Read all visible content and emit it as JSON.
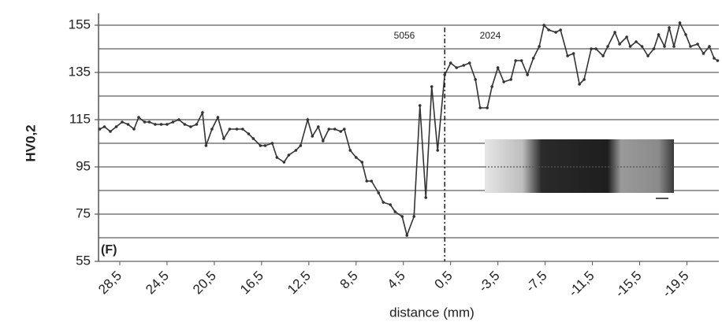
{
  "chart_data": {
    "type": "line",
    "x_label": "distance (mm)",
    "y_label": "HV0,2",
    "annotations": [
      "5056",
      "2024",
      "(F)"
    ],
    "divider_x": 1.0,
    "series": [
      {
        "color": "#333333",
        "x": [
          30.2,
          29.8,
          29.3,
          28.8,
          28.3,
          27.8,
          27.3,
          26.9,
          26.4,
          26.0,
          25.5,
          25.0,
          24.5,
          24.0,
          23.5,
          23.0,
          22.5,
          22.0,
          21.5,
          21.2,
          20.7,
          20.2,
          19.7,
          19.2,
          18.6,
          18.1,
          17.6,
          17.2,
          16.6,
          16.2,
          15.6,
          15.2,
          14.6,
          14.2,
          13.6,
          13.2,
          12.6,
          12.2,
          11.7,
          11.3,
          10.8,
          10.3,
          9.8,
          9.5,
          9.0,
          8.5,
          8.0,
          7.6,
          7.2,
          6.6,
          6.2,
          5.6,
          5.2,
          4.6,
          4.2,
          3.6,
          3.1,
          2.6,
          2.1,
          1.6,
          1.0,
          0.5,
          0.0,
          -0.6,
          -1.1,
          -1.6,
          -2.0,
          -2.6,
          -3.0,
          -3.5,
          -4.0,
          -4.6,
          -5.0,
          -5.5,
          -6.0,
          -6.5,
          -7.0,
          -7.4,
          -7.8,
          -8.4,
          -8.8,
          -9.4,
          -9.9,
          -10.4,
          -10.8,
          -11.4,
          -11.8,
          -12.4,
          -12.8,
          -13.4,
          -13.8,
          -14.4,
          -14.7,
          -15.2,
          -15.7,
          -16.2,
          -16.7,
          -17.1,
          -17.6,
          -18.0,
          -18.4,
          -18.9,
          -19.4,
          -19.8,
          -20.4,
          -20.9,
          -21.4,
          -21.8,
          -22.1
        ],
        "values": [
          111,
          112,
          110,
          112,
          114,
          113,
          111,
          116,
          114,
          114,
          113,
          113,
          113,
          114,
          115,
          113,
          112,
          113,
          118,
          104,
          111,
          116,
          107,
          111,
          111,
          111,
          109,
          107,
          104,
          104,
          105,
          99,
          97,
          100,
          102,
          104,
          115,
          108,
          112,
          106,
          111,
          111,
          110,
          111,
          102,
          99,
          97,
          89,
          89,
          84,
          80,
          79,
          76,
          74,
          66,
          74,
          121,
          82,
          129,
          102,
          134,
          139,
          137,
          138,
          139,
          132,
          120,
          120,
          129,
          137,
          131,
          132,
          140,
          140,
          134,
          141,
          146,
          155,
          153,
          152,
          153,
          142,
          143,
          130,
          132,
          145,
          145,
          142,
          146,
          152,
          147,
          150,
          146,
          148,
          146,
          142,
          145,
          151,
          146,
          154,
          146,
          156,
          151,
          146,
          147,
          143,
          146,
          141,
          140
        ]
      }
    ],
    "xlim": [
      30.3,
      -22.2
    ],
    "xticks": [
      {
        "value": 28.5,
        "label": "28,5"
      },
      {
        "value": 24.5,
        "label": "24,5"
      },
      {
        "value": 20.5,
        "label": "20,5"
      },
      {
        "value": 16.5,
        "label": "16,5"
      },
      {
        "value": 12.5,
        "label": "12,5"
      },
      {
        "value": 8.5,
        "label": "8,5"
      },
      {
        "value": 4.5,
        "label": "4,5"
      },
      {
        "value": 0.5,
        "label": "0,5"
      },
      {
        "value": -3.5,
        "label": "-3,5"
      },
      {
        "value": -7.5,
        "label": "-7,5"
      },
      {
        "value": -11.5,
        "label": "-11,5"
      },
      {
        "value": -15.5,
        "label": "-15,5"
      },
      {
        "value": -19.5,
        "label": "-19,5"
      }
    ],
    "ylim": [
      55,
      160
    ],
    "yticks": [
      55,
      75,
      95,
      115,
      135,
      155
    ],
    "y_minor_gridlines": [
      65,
      85,
      105,
      125,
      145
    ],
    "grid": true
  }
}
